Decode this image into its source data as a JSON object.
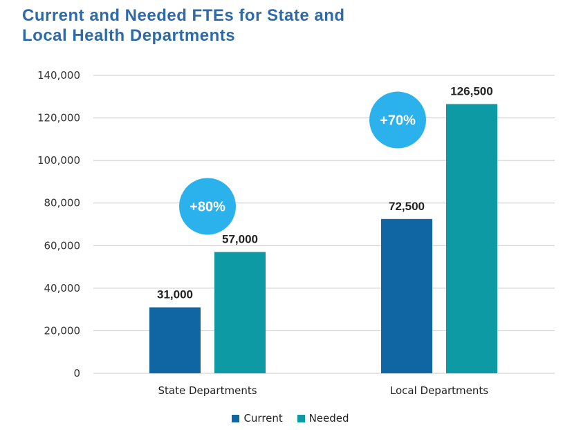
{
  "title_line1": "Current and Needed FTEs for State and",
  "title_line2": "Local Health Departments",
  "colors": {
    "current": "#0f66a3",
    "needed": "#0e9aa4",
    "badge": "#2bb2ec",
    "title": "#2e6aa8",
    "grid": "#c8c8c8"
  },
  "chart_data": {
    "type": "bar",
    "title": "Current and Needed FTEs for State and Local Health Departments",
    "xlabel": "",
    "ylabel": "",
    "categories": [
      "State Departments",
      "Local Departments"
    ],
    "series": [
      {
        "name": "Current",
        "values": [
          31000,
          72500
        ],
        "labels": [
          "31,000",
          "72,500"
        ]
      },
      {
        "name": "Needed",
        "values": [
          57000,
          126500
        ],
        "labels": [
          "57,000",
          "126,500"
        ]
      }
    ],
    "ylim": [
      0,
      140000
    ],
    "yticks": [
      0,
      20000,
      40000,
      60000,
      80000,
      100000,
      120000,
      140000
    ],
    "ytick_labels": [
      "0",
      "20,000",
      "40,000",
      "60,000",
      "80,000",
      "100,000",
      "120,000",
      "140,000"
    ],
    "badges": [
      {
        "category": "State Departments",
        "text": "+80%"
      },
      {
        "category": "Local Departments",
        "text": "+70%"
      }
    ],
    "grid": true,
    "legend_position": "bottom-center"
  }
}
